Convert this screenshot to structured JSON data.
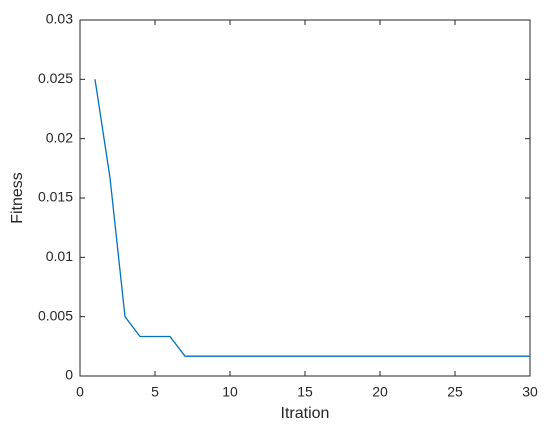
{
  "chart_data": {
    "type": "line",
    "xlabel": "Itration",
    "ylabel": "Fitness",
    "x": [
      1,
      2,
      3,
      4,
      5,
      6,
      7,
      8,
      9,
      10,
      11,
      12,
      13,
      14,
      15,
      16,
      17,
      18,
      19,
      20,
      21,
      22,
      23,
      24,
      25,
      26,
      27,
      28,
      29,
      30
    ],
    "values": [
      0.025,
      0.0167,
      0.005,
      0.00333,
      0.00333,
      0.00333,
      0.00167,
      0.00167,
      0.00167,
      0.00167,
      0.00167,
      0.00167,
      0.00167,
      0.00167,
      0.00167,
      0.00167,
      0.00167,
      0.00167,
      0.00167,
      0.00167,
      0.00167,
      0.00167,
      0.00167,
      0.00167,
      0.00167,
      0.00167,
      0.00167,
      0.00167,
      0.00167,
      0.00167
    ],
    "color": "#0072bd",
    "xlim": [
      0,
      30
    ],
    "xticks": [
      0,
      5,
      10,
      15,
      20,
      25,
      30
    ],
    "ylim": [
      0,
      0.03
    ],
    "yticks": [
      0,
      0.005,
      0.01,
      0.015,
      0.02,
      0.025,
      0.03
    ]
  }
}
